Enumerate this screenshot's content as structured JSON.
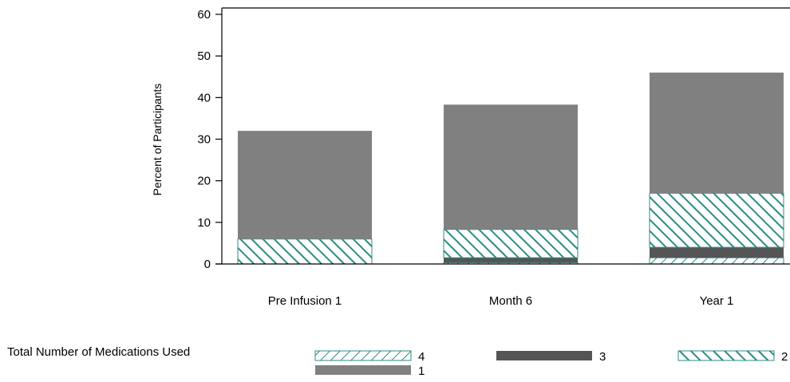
{
  "chart_data": {
    "type": "bar",
    "stacked": true,
    "title": "",
    "xlabel": "",
    "ylabel": "Percent of Participants",
    "ylim": [
      0,
      60
    ],
    "yticks": [
      0,
      10,
      20,
      30,
      40,
      50,
      60
    ],
    "categories": [
      "Pre Infusion 1",
      "Month 6",
      "Year 1"
    ],
    "series": [
      {
        "name": "4",
        "values": [
          0,
          0.3,
          1.5
        ],
        "color": "#2b8c86",
        "pattern": "hatch-forward-light"
      },
      {
        "name": "3",
        "values": [
          0,
          1.2,
          2.5
        ],
        "color": "#555555",
        "pattern": "solid"
      },
      {
        "name": "2",
        "values": [
          6,
          6.8,
          13
        ],
        "color": "#2b8c86",
        "pattern": "hatch-back"
      },
      {
        "name": "1",
        "values": [
          26,
          30,
          29
        ],
        "color": "#808080",
        "pattern": "solid"
      }
    ],
    "legend": {
      "title": "Total Number of Medications Used",
      "placement": "bottom"
    }
  }
}
